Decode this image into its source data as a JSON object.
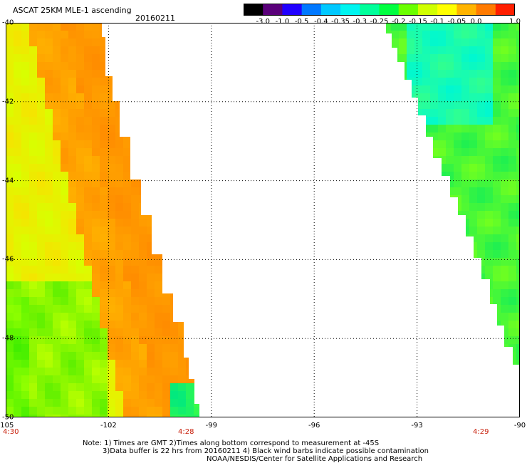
{
  "title": "ASCAT 25KM MLE-1 ascending",
  "date": "20160211",
  "colorbar": {
    "labels": [
      "-3.0",
      "-1.0",
      "-0.5",
      "-0.4",
      "-0.35",
      "-0.3",
      "-0.25",
      "-0.2",
      "-0.15",
      "-0.1",
      "-0.05",
      "0.0",
      "1.0"
    ],
    "colors": [
      "#000000",
      "#5a007a",
      "#2000ff",
      "#0078ff",
      "#00c8ff",
      "#00f5f0",
      "#00ff9a",
      "#00ff40",
      "#6aff00",
      "#d0ff00",
      "#ffff00",
      "#ffb400",
      "#ff7a00",
      "#ff1e00"
    ]
  },
  "x_axis": {
    "ticks": [
      "-105",
      "-102",
      "-99",
      "-96",
      "-93",
      "-90"
    ],
    "values": [
      -105,
      -102,
      -99,
      -96,
      -93,
      -90
    ]
  },
  "y_axis": {
    "ticks": [
      "-40",
      "-42",
      "-44",
      "-46",
      "-48",
      "-50"
    ],
    "values": [
      -40,
      -42,
      -44,
      -46,
      -48,
      -50
    ]
  },
  "times": [
    "4:30",
    "4:28",
    "4:29"
  ],
  "notes": [
    "Note: 1) Times are GMT 2)Times along bottom correspond to measurement at -45S",
    "3)Data buffer is 22 hrs from 20160211 4) Black wind barbs indicate possible contamination",
    "NOAA/NESDIS/Center for Satellite Applications and Research"
  ]
}
